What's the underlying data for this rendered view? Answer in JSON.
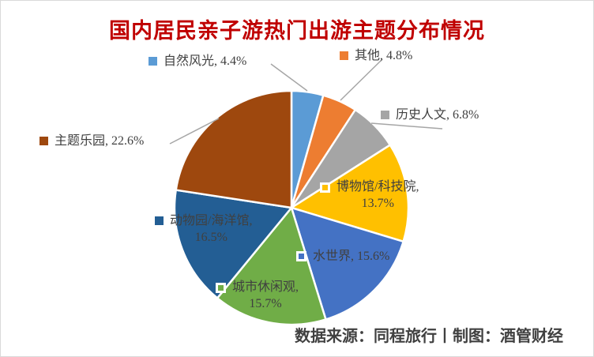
{
  "chart_data": {
    "type": "pie",
    "title": "国内居民亲子游热门出游主题分布情况",
    "title_color": "#C00000",
    "source_note": "数据来源：同程旅行丨制图：酒管财经",
    "unit": "%",
    "start_angle_deg": 0,
    "direction": "clockwise",
    "legend_position": "data-labels-with-leader-lines",
    "slices": [
      {
        "name": "自然风光",
        "value": 4.4,
        "color": "#5B9BD5",
        "label": "自然风光, 4.4%"
      },
      {
        "name": "其他",
        "value": 4.8,
        "color": "#ED7D31",
        "label": "其他, 4.8%"
      },
      {
        "name": "历史人文",
        "value": 6.8,
        "color": "#A5A5A5",
        "label": "历史人文, 6.8%"
      },
      {
        "name": "博物馆/科技院",
        "value": 13.7,
        "color": "#FFC000",
        "label": "博物馆/科技院,",
        "label2": "13.7%"
      },
      {
        "name": "水世界",
        "value": 15.6,
        "color": "#4472C4",
        "label": "水世界, 15.6%"
      },
      {
        "name": "城市休闲观",
        "value": 15.7,
        "color": "#70AD47",
        "label": "城市休闲观,",
        "label2": "15.7%"
      },
      {
        "name": "动物园/海洋馆",
        "value": 16.5,
        "color": "#235E94",
        "label": "动物园/海洋馆,",
        "label2": "16.5%"
      },
      {
        "name": "主题乐园",
        "value": 22.6,
        "color": "#9E480E",
        "label": "主题乐园, 22.6%"
      }
    ]
  }
}
